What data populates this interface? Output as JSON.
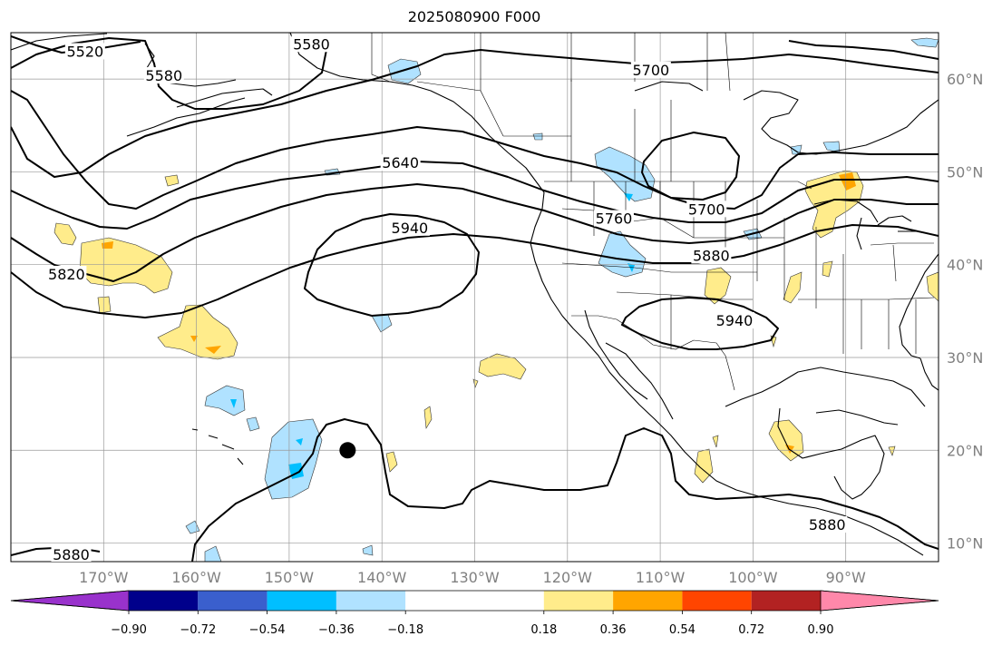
{
  "title": "2025080900 F000",
  "map": {
    "lat_range": [
      8,
      65
    ],
    "lon_range": [
      -180,
      -80
    ],
    "lat_ticks": [
      {
        "lat": 60,
        "label": "60°N"
      },
      {
        "lat": 50,
        "label": "50°N"
      },
      {
        "lat": 40,
        "label": "40°N"
      },
      {
        "lat": 30,
        "label": "30°N"
      },
      {
        "lat": 20,
        "label": "20°N"
      },
      {
        "lat": 10,
        "label": "10°N"
      }
    ],
    "lon_ticks": [
      {
        "lon": -170,
        "label": "170°W"
      },
      {
        "lon": -160,
        "label": "160°W"
      },
      {
        "lon": -150,
        "label": "150°W"
      },
      {
        "lon": -140,
        "label": "140°W"
      },
      {
        "lon": -130,
        "label": "130°W"
      },
      {
        "lon": -120,
        "label": "120°W"
      },
      {
        "lon": -110,
        "label": "110°W"
      },
      {
        "lon": -100,
        "label": "100°W"
      },
      {
        "lon": -90,
        "label": "90°W"
      }
    ],
    "grid": true,
    "marker": {
      "name": "point-marker",
      "lon": -143.7,
      "lat": 20.0,
      "color": "#000000"
    },
    "contour_labels": [
      {
        "text": "5520",
        "lon": -172,
        "lat": 63
      },
      {
        "text": "5580",
        "lon": -147.6,
        "lat": 63.8
      },
      {
        "text": "5580",
        "lon": -163.5,
        "lat": 60.4
      },
      {
        "text": "5640",
        "lon": -138,
        "lat": 51
      },
      {
        "text": "5700",
        "lon": -111,
        "lat": 61
      },
      {
        "text": "5700",
        "lon": -105,
        "lat": 46
      },
      {
        "text": "5760",
        "lon": -115,
        "lat": 45
      },
      {
        "text": "5820",
        "lon": -174,
        "lat": 39
      },
      {
        "text": "5880",
        "lon": -104.5,
        "lat": 41
      },
      {
        "text": "5880",
        "lon": -173.5,
        "lat": 8.8
      },
      {
        "text": "5880",
        "lon": -92,
        "lat": 12
      },
      {
        "text": "5940",
        "lon": -137,
        "lat": 44
      },
      {
        "text": "5940",
        "lon": -102,
        "lat": 34
      }
    ]
  },
  "colorbar": {
    "colors": [
      "#9932cc",
      "#00008b",
      "#3a5fcd",
      "#00bfff",
      "#b0e2ff",
      "#ffffff",
      "#ffec8b",
      "#ffa500",
      "#ff4500",
      "#b22222",
      "#ff88aa"
    ],
    "ticks": [
      {
        "value": -0.9,
        "label": "−0.90"
      },
      {
        "value": -0.72,
        "label": "−0.72"
      },
      {
        "value": -0.54,
        "label": "−0.54"
      },
      {
        "value": -0.36,
        "label": "−0.36"
      },
      {
        "value": -0.18,
        "label": "−0.18"
      },
      {
        "value": 0.18,
        "label": "0.18"
      },
      {
        "value": 0.36,
        "label": "0.36"
      },
      {
        "value": 0.54,
        "label": "0.54"
      },
      {
        "value": 0.72,
        "label": "0.72"
      },
      {
        "value": 0.9,
        "label": "0.90"
      }
    ]
  }
}
